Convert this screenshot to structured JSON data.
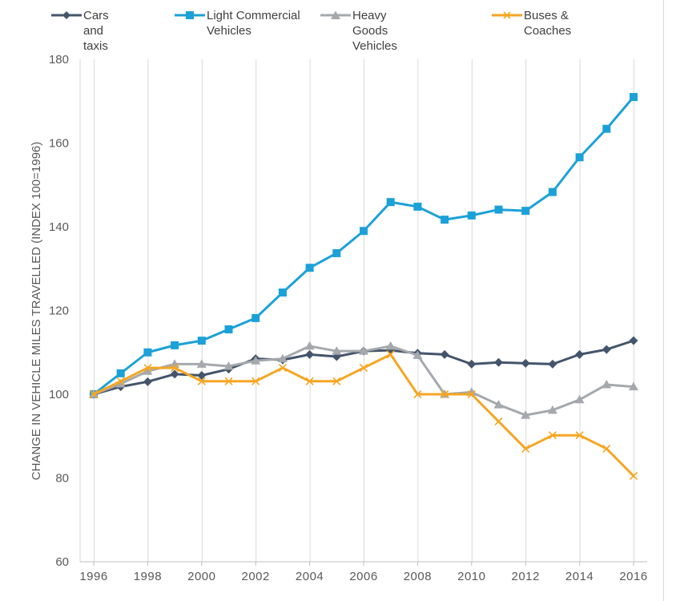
{
  "chart_data": {
    "type": "line",
    "title": "",
    "xlabel": "",
    "ylabel": "CHANGE IN VEHICLE MILES TRAVELLED (INDEX 100=1996)",
    "ylim": [
      60,
      180
    ],
    "yticks": [
      60,
      80,
      100,
      120,
      140,
      160,
      180
    ],
    "xlim": [
      1996,
      2016
    ],
    "xticks": [
      "1996",
      "1998",
      "2000",
      "2002",
      "2004",
      "2006",
      "2008",
      "2010",
      "2012",
      "2014",
      "2016"
    ],
    "x": [
      1996,
      1997,
      1998,
      1999,
      2000,
      2001,
      2002,
      2003,
      2004,
      2005,
      2006,
      2007,
      2008,
      2009,
      2010,
      2011,
      2012,
      2013,
      2014,
      2015,
      2016
    ],
    "grid": "vertical",
    "legend_position": "top",
    "series": [
      {
        "name": "Cars and taxis",
        "color": "#44546a",
        "marker": "diamond",
        "values": [
          100,
          101.8,
          103,
          104.8,
          104.5,
          106,
          108.5,
          108.2,
          109.5,
          109,
          110.3,
          110.5,
          109.8,
          109.5,
          107.2,
          107.6,
          107.4,
          107.2,
          109.5,
          110.7,
          112.8
        ]
      },
      {
        "name": "Light Commercial Vehicles",
        "color": "#1ba1d8",
        "marker": "square",
        "values": [
          100,
          105,
          110,
          111.7,
          112.8,
          115.5,
          118.2,
          124.3,
          130.2,
          133.7,
          139,
          145.9,
          144.8,
          141.7,
          142.7,
          144.1,
          143.8,
          148.3,
          156.6,
          163.4,
          171
        ]
      },
      {
        "name": "Heavy Goods Vehicles",
        "color": "#a5a9ad",
        "marker": "triangle",
        "values": [
          100,
          102.5,
          105.5,
          107.2,
          107.2,
          106.7,
          108,
          108.5,
          111.5,
          110.3,
          110.3,
          111.5,
          109.3,
          100,
          100.5,
          97.5,
          95,
          96.2,
          98.7,
          102.3,
          101.8
        ]
      },
      {
        "name": "Buses & Coaches",
        "color": "#f5a623",
        "marker": "x",
        "values": [
          100,
          103.1,
          106.3,
          106.3,
          103.1,
          103.1,
          103.1,
          106.3,
          103.1,
          103.1,
          106.3,
          109.5,
          100,
          100,
          100,
          93.5,
          87,
          90.2,
          90.2,
          87,
          80.5
        ]
      }
    ]
  }
}
